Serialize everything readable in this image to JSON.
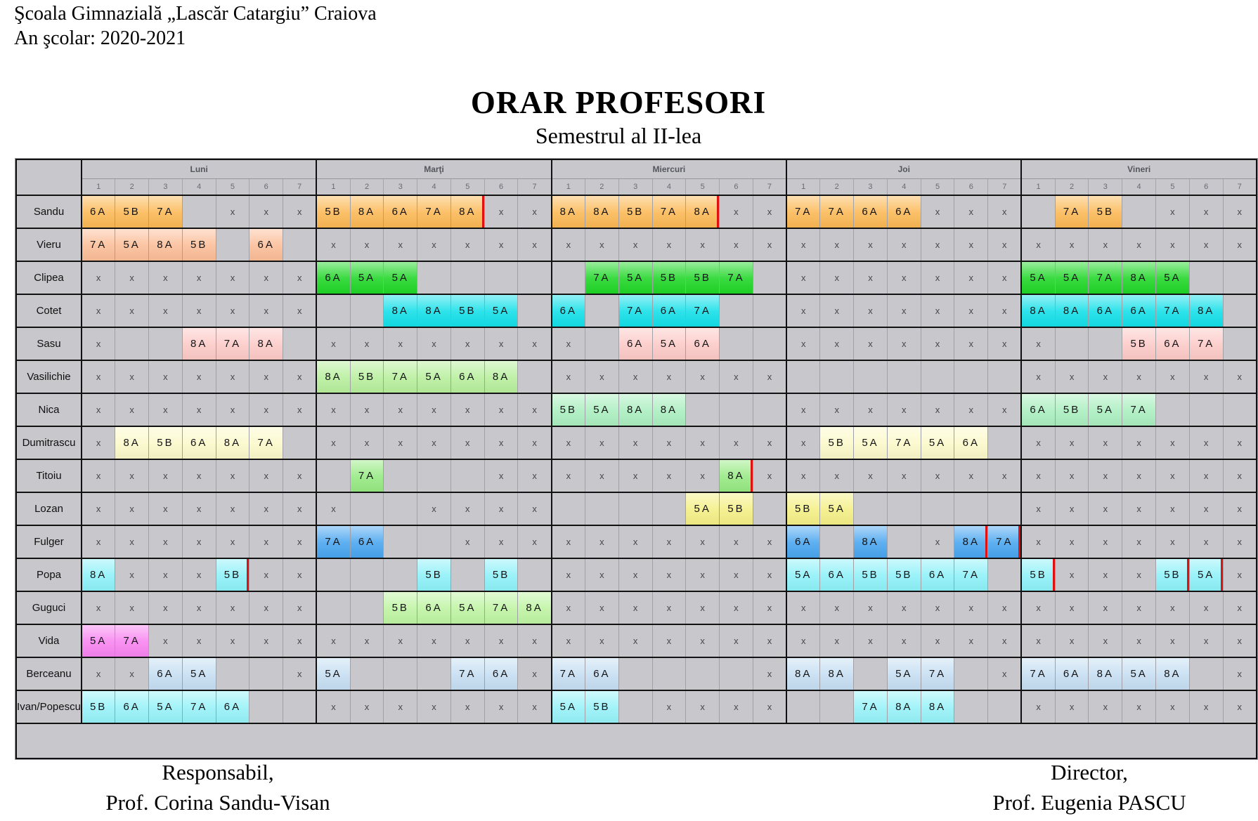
{
  "header": {
    "school": "Şcoala Gimnazială „Lascăr Catargiu” Craiova",
    "year_line": "An şcolar: 2020-2021"
  },
  "title": "ORAR PROFESORI",
  "subtitle": "Semestrul al II-lea",
  "colors": {
    "grid_bg": "#c7c7cc",
    "border_dark": "#111111",
    "border_light": "#9a9aa0",
    "red_mark": "#df1111"
  },
  "table": {
    "days": [
      "Luni",
      "Marţi",
      "Miercuri",
      "Joi",
      "Vineri"
    ],
    "period_labels": [
      "1",
      "2",
      "3",
      "4",
      "5",
      "6",
      "7"
    ],
    "empty_symbol": "",
    "blocked_symbol": "x",
    "teachers": [
      {
        "name": "Sandu",
        "color": "#fbb854",
        "schedule": [
          [
            "6A",
            "5B",
            "7A",
            "",
            "x",
            "x",
            "x"
          ],
          [
            "5B",
            "8A",
            "6A",
            "7A",
            {
              "v": "8A",
              "red": true
            },
            "x",
            "x"
          ],
          [
            "8A",
            "8A",
            "5B",
            "7A",
            {
              "v": "8A",
              "red": true
            },
            "x",
            "x"
          ],
          [
            "7A",
            "7A",
            "6A",
            "6A",
            "x",
            "x",
            "x"
          ],
          [
            "",
            "7A",
            "5B",
            "",
            "x",
            "x",
            "x"
          ]
        ]
      },
      {
        "name": "Vieru",
        "color": "#fbbd97",
        "schedule": [
          [
            "7A",
            "5A",
            "8A",
            "5B",
            "",
            "6A",
            ""
          ],
          [
            "x",
            "x",
            "x",
            "x",
            "x",
            "x",
            "x"
          ],
          [
            "x",
            "x",
            "x",
            "x",
            "x",
            "x",
            "x"
          ],
          [
            "x",
            "x",
            "x",
            "x",
            "x",
            "x",
            "x"
          ],
          [
            "x",
            "x",
            "x",
            "x",
            "x",
            "x",
            "x"
          ]
        ]
      },
      {
        "name": "Clipea",
        "color": "#1fd626",
        "schedule": [
          [
            "x",
            "x",
            "x",
            "x",
            "x",
            "x",
            "x"
          ],
          [
            "6A",
            "5A",
            "5A",
            "",
            "",
            "",
            ""
          ],
          [
            "",
            "7A",
            "5A",
            "5B",
            "5B",
            "7A",
            ""
          ],
          [
            "x",
            "x",
            "x",
            "x",
            "x",
            "x",
            "x"
          ],
          [
            "5A",
            "5A",
            "7A",
            "8A",
            "5A",
            "",
            ""
          ]
        ]
      },
      {
        "name": "Cotet",
        "color": "#12dfe8",
        "schedule": [
          [
            "x",
            "x",
            "x",
            "x",
            "x",
            "x",
            "x"
          ],
          [
            "",
            "",
            "8A",
            "8A",
            "5B",
            "5A",
            ""
          ],
          [
            "6A",
            "",
            "7A",
            "6A",
            "7A",
            "",
            ""
          ],
          [
            "x",
            "x",
            "x",
            "x",
            "x",
            "x",
            "x"
          ],
          [
            "8A",
            "8A",
            "6A",
            "6A",
            "7A",
            "8A",
            ""
          ]
        ]
      },
      {
        "name": "Sasu",
        "color": "#fcc9c6",
        "schedule": [
          [
            "x",
            "",
            "",
            "8A",
            "7A",
            "8A",
            ""
          ],
          [
            "x",
            "x",
            "x",
            "x",
            "x",
            "x",
            "x"
          ],
          [
            "x",
            "",
            "6A",
            "5A",
            "6A",
            "",
            ""
          ],
          [
            "x",
            "x",
            "x",
            "x",
            "x",
            "x",
            "x"
          ],
          [
            "x",
            "",
            "",
            "5B",
            "6A",
            "7A",
            ""
          ]
        ]
      },
      {
        "name": "Vasilichie",
        "color": "#b7ef9c",
        "schedule": [
          [
            "x",
            "x",
            "x",
            "x",
            "x",
            "x",
            "x"
          ],
          [
            "8A",
            "5B",
            "7A",
            "5A",
            "6A",
            "8A",
            ""
          ],
          [
            "x",
            "x",
            "x",
            "x",
            "x",
            "x",
            "x"
          ],
          [
            "",
            "",
            "",
            "",
            "",
            "",
            ""
          ],
          [
            "x",
            "x",
            "x",
            "x",
            "x",
            "x",
            "x"
          ]
        ]
      },
      {
        "name": "Nica",
        "color": "#aaeebf",
        "schedule": [
          [
            "x",
            "x",
            "x",
            "x",
            "x",
            "x",
            "x"
          ],
          [
            "x",
            "x",
            "x",
            "x",
            "x",
            "x",
            "x"
          ],
          [
            "5B",
            "5A",
            "8A",
            "8A",
            "",
            "",
            ""
          ],
          [
            "x",
            "x",
            "x",
            "x",
            "x",
            "x",
            "x"
          ],
          [
            "6A",
            "5B",
            "5A",
            "7A",
            "",
            "",
            ""
          ]
        ]
      },
      {
        "name": "Dumitrascu",
        "color": "#fbf9c9",
        "schedule": [
          [
            "x",
            "8A",
            "5B",
            "6A",
            "8A",
            "7A",
            ""
          ],
          [
            "x",
            "x",
            "x",
            "x",
            "x",
            "x",
            "x"
          ],
          [
            "x",
            "x",
            "x",
            "x",
            "x",
            "x",
            "x"
          ],
          [
            "x",
            "5B",
            "5A",
            "7A",
            "5A",
            "6A",
            ""
          ],
          [
            "x",
            "x",
            "x",
            "x",
            "x",
            "x",
            "x"
          ]
        ]
      },
      {
        "name": "Titoiu",
        "color": "#96e982",
        "schedule": [
          [
            "x",
            "x",
            "x",
            "x",
            "x",
            "x",
            "x"
          ],
          [
            "",
            "7A",
            "",
            "",
            "",
            "x",
            "x"
          ],
          [
            "x",
            "x",
            "x",
            "x",
            "x",
            {
              "v": "8A",
              "red": true
            },
            "x"
          ],
          [
            "x",
            "x",
            "x",
            "x",
            "x",
            "x",
            "x"
          ],
          [
            "x",
            "x",
            "x",
            "x",
            "x",
            "x",
            "x"
          ]
        ]
      },
      {
        "name": "Lozan",
        "color": "#f4ef85",
        "schedule": [
          [
            "x",
            "x",
            "x",
            "x",
            "x",
            "x",
            "x"
          ],
          [
            "x",
            "",
            "",
            "x",
            "x",
            "x",
            "x"
          ],
          [
            "",
            "",
            "",
            "",
            "5A",
            "5B",
            ""
          ],
          [
            "5B",
            "5A",
            "",
            "",
            "",
            "",
            ""
          ],
          [
            "x",
            "x",
            "x",
            "x",
            "x",
            "x",
            "x"
          ]
        ]
      },
      {
        "name": "Fulger",
        "color": "#48a5ef",
        "schedule": [
          [
            "x",
            "x",
            "x",
            "x",
            "x",
            "x",
            "x"
          ],
          [
            "7A",
            "6A",
            "",
            "",
            "x",
            "x",
            "x"
          ],
          [
            "x",
            "x",
            "x",
            "x",
            "x",
            "x",
            "x"
          ],
          [
            "6A",
            "",
            "8A",
            "",
            "x",
            {
              "v": "8A",
              "red": true
            },
            {
              "v": "7A",
              "red": true
            }
          ],
          [
            "x",
            "x",
            "x",
            "x",
            "x",
            "x",
            "x"
          ]
        ]
      },
      {
        "name": "Popa",
        "color": "#8df1f8",
        "schedule": [
          [
            "8A",
            "x",
            "x",
            "x",
            {
              "v": "5B",
              "red": true
            },
            "x",
            "x"
          ],
          [
            "",
            "",
            "",
            "5B",
            "",
            "5B",
            ""
          ],
          [
            "x",
            "x",
            "x",
            "x",
            "x",
            "x",
            "x"
          ],
          [
            "5A",
            "6A",
            "5B",
            "5B",
            "6A",
            "7A",
            ""
          ],
          [
            {
              "v": "5B",
              "red": true
            },
            "x",
            "x",
            "x",
            {
              "v": "5B",
              "red": true
            },
            {
              "v": "5A",
              "red": true
            },
            "x"
          ]
        ]
      },
      {
        "name": "Guguci",
        "color": "#bef4a2",
        "schedule": [
          [
            "x",
            "x",
            "x",
            "x",
            "x",
            "x",
            "x"
          ],
          [
            "",
            "",
            "5B",
            "6A",
            "5A",
            "7A",
            "8A"
          ],
          [
            "x",
            "x",
            "x",
            "x",
            "x",
            "x",
            "x"
          ],
          [
            "x",
            "x",
            "x",
            "x",
            "x",
            "x",
            "x"
          ],
          [
            "x",
            "x",
            "x",
            "x",
            "x",
            "x",
            "x"
          ]
        ]
      },
      {
        "name": "Vida",
        "color": "#f883f0",
        "schedule": [
          [
            "5A",
            "7A",
            "x",
            "x",
            "x",
            "x",
            "x"
          ],
          [
            "x",
            "x",
            "x",
            "x",
            "x",
            "x",
            "x"
          ],
          [
            "x",
            "x",
            "x",
            "x",
            "x",
            "x",
            "x"
          ],
          [
            "x",
            "x",
            "x",
            "x",
            "x",
            "x",
            "x"
          ],
          [
            "x",
            "x",
            "x",
            "x",
            "x",
            "x",
            "x"
          ]
        ]
      },
      {
        "name": "Berceanu",
        "color": "#c5def2",
        "schedule": [
          [
            "x",
            "x",
            "6A",
            "5A",
            "",
            "",
            "x"
          ],
          [
            "5A",
            "",
            "",
            "",
            "7A",
            "6A",
            "x"
          ],
          [
            "7A",
            "6A",
            "",
            "",
            "",
            "",
            "x"
          ],
          [
            "8A",
            "8A",
            "",
            "5A",
            "7A",
            "",
            "x"
          ],
          [
            "7A",
            "6A",
            "8A",
            "5A",
            "8A",
            "",
            "x"
          ]
        ]
      },
      {
        "name": "Ivan/Popescu",
        "color": "#96f2f8",
        "schedule": [
          [
            "5B",
            "6A",
            "5A",
            "7A",
            "6A",
            "",
            ""
          ],
          [
            "x",
            "x",
            "x",
            "x",
            "x",
            "x",
            "x"
          ],
          [
            "5A",
            "5B",
            "",
            "x",
            "x",
            "x",
            "x"
          ],
          [
            "",
            "",
            "7A",
            "8A",
            "8A",
            "",
            ""
          ],
          [
            "x",
            "x",
            "x",
            "x",
            "x",
            "x",
            "x"
          ]
        ]
      }
    ]
  },
  "footer_left": {
    "line1": "Responsabil,",
    "line2": "Prof. Corina Sandu-Visan"
  },
  "footer_right": {
    "line1": "Director,",
    "line2": "Prof. Eugenia PASCU"
  }
}
